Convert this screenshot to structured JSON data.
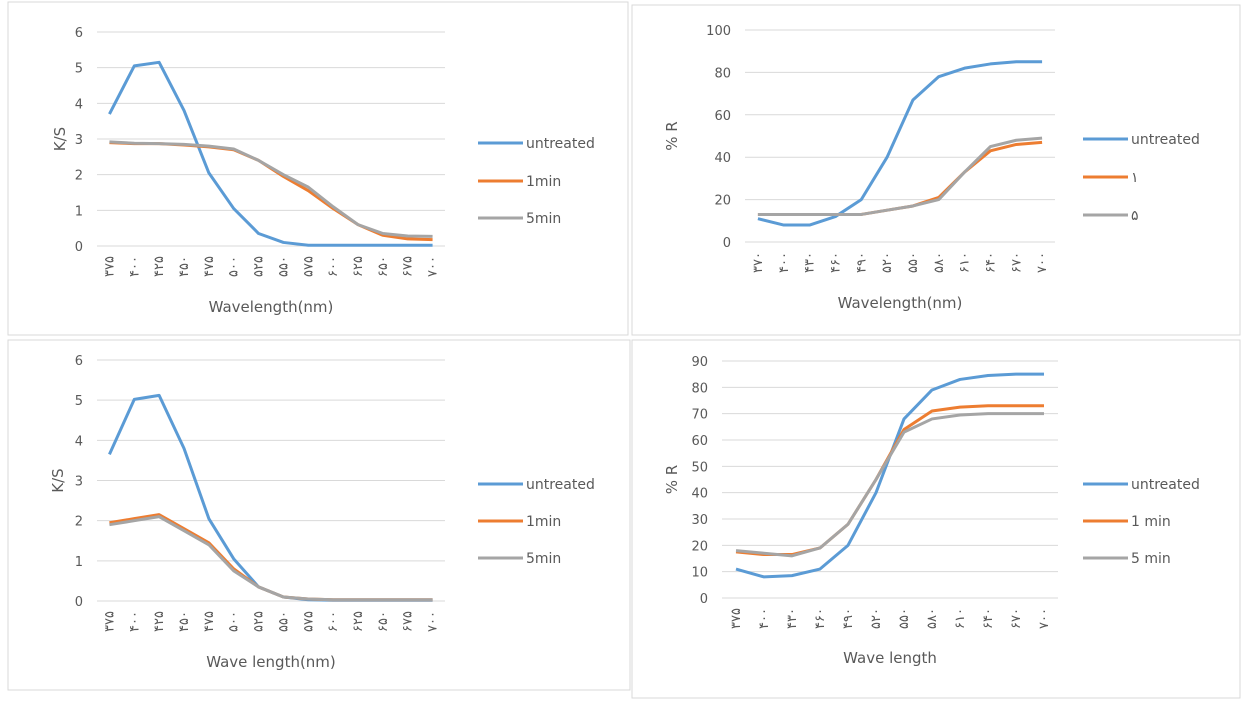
{
  "chart_data": [
    {
      "type": "line",
      "y_label": "K/S",
      "x_label": "Wavelength(nm)",
      "categories": [
        "۳۷۵",
        "۴۰۰",
        "۴۲۵",
        "۴۵۰",
        "۴۷۵",
        "۵۰۰",
        "۵۲۵",
        "۵۵۰",
        "۵۷۵",
        "۶۰۰",
        "۶۲۵",
        "۶۵۰",
        "۶۷۵",
        "۷۰۰"
      ],
      "ylim": [
        0,
        6
      ],
      "yticks": [
        0,
        1,
        2,
        3,
        4,
        5,
        6
      ],
      "grid": true,
      "series": [
        {
          "name": "untreated",
          "color": "#5b9bd5",
          "values": [
            3.7,
            5.05,
            5.15,
            3.8,
            2.05,
            1.05,
            0.35,
            0.1,
            0.02,
            0.02,
            0.02,
            0.02,
            0.02,
            0.02
          ]
        },
        {
          "name": "1min",
          "color": "#ed7d31",
          "values": [
            2.9,
            2.87,
            2.87,
            2.83,
            2.78,
            2.7,
            2.4,
            1.95,
            1.55,
            1.05,
            0.6,
            0.3,
            0.2,
            0.18
          ]
        },
        {
          "name": "5min",
          "color": "#a5a5a5",
          "values": [
            2.92,
            2.88,
            2.87,
            2.85,
            2.8,
            2.72,
            2.4,
            2.0,
            1.65,
            1.1,
            0.6,
            0.35,
            0.28,
            0.27
          ]
        }
      ]
    },
    {
      "type": "line",
      "y_label": "% R",
      "x_label": "Wavelength(nm)",
      "categories": [
        "۳۷۰",
        "۴۰۰",
        "۴۳۰",
        "۴۶۰",
        "۴۹۰",
        "۵۲۰",
        "۵۵۰",
        "۵۸۰",
        "۶۱۰",
        "۶۴۰",
        "۶۷۰",
        "۷۰۰"
      ],
      "ylim": [
        0,
        100
      ],
      "yticks": [
        0,
        20,
        40,
        60,
        80,
        100
      ],
      "grid": true,
      "series": [
        {
          "name": "untreated",
          "color": "#5b9bd5",
          "values": [
            11,
            8,
            8,
            12,
            20,
            40,
            67,
            78,
            82,
            84,
            85,
            85
          ]
        },
        {
          "name": "۱",
          "color": "#ed7d31",
          "values": [
            13,
            13,
            13,
            13,
            13,
            15,
            17,
            21,
            33,
            43,
            46,
            47
          ]
        },
        {
          "name": "۵",
          "color": "#a5a5a5",
          "values": [
            13,
            13,
            13,
            13,
            13,
            15,
            17,
            20,
            33,
            45,
            48,
            49
          ]
        }
      ]
    },
    {
      "type": "line",
      "y_label": "K/S",
      "x_label": "Wave length(nm)",
      "categories": [
        "۳۷۵",
        "۴۰۰",
        "۴۲۵",
        "۴۵۰",
        "۴۷۵",
        "۵۰۰",
        "۵۲۵",
        "۵۵۰",
        "۵۷۵",
        "۶۰۰",
        "۶۲۵",
        "۶۵۰",
        "۶۷۵",
        "۷۰۰"
      ],
      "ylim": [
        0,
        6
      ],
      "yticks": [
        0,
        1,
        2,
        3,
        4,
        5,
        6
      ],
      "grid": true,
      "series": [
        {
          "name": "untreated",
          "color": "#5b9bd5",
          "values": [
            3.65,
            5.02,
            5.12,
            3.8,
            2.05,
            1.05,
            0.35,
            0.1,
            0.03,
            0.02,
            0.02,
            0.02,
            0.02,
            0.02
          ]
        },
        {
          "name": "1min",
          "color": "#ed7d31",
          "values": [
            1.95,
            2.05,
            2.15,
            1.8,
            1.45,
            0.8,
            0.35,
            0.1,
            0.05,
            0.03,
            0.03,
            0.03,
            0.03,
            0.03
          ]
        },
        {
          "name": "5min",
          "color": "#a5a5a5",
          "values": [
            1.9,
            2.0,
            2.1,
            1.75,
            1.4,
            0.75,
            0.35,
            0.1,
            0.05,
            0.03,
            0.03,
            0.03,
            0.03,
            0.03
          ]
        }
      ]
    },
    {
      "type": "line",
      "y_label": "% R",
      "x_label": "Wave length",
      "categories": [
        "۳۷۵",
        "۴۰۰",
        "۴۳۰",
        "۴۶۰",
        "۴۹۰",
        "۵۲۰",
        "۵۵۰",
        "۵۸۰",
        "۶۱۰",
        "۶۴۰",
        "۶۷۰",
        "۷۰۰"
      ],
      "ylim": [
        0,
        90
      ],
      "yticks": [
        0,
        10,
        20,
        30,
        40,
        50,
        60,
        70,
        80,
        90
      ],
      "grid": true,
      "series": [
        {
          "name": "untreated",
          "color": "#5b9bd5",
          "values": [
            11,
            8,
            8.5,
            11,
            20,
            40,
            68,
            79,
            83,
            84.5,
            85,
            85
          ]
        },
        {
          "name": "1 min",
          "color": "#ed7d31",
          "values": [
            17.5,
            16.5,
            16.5,
            19,
            28,
            45,
            64,
            71,
            72.5,
            73,
            73,
            73
          ]
        },
        {
          "name": "5 min",
          "color": "#a5a5a5",
          "values": [
            18,
            17,
            16,
            19,
            28,
            45,
            63,
            68,
            69.5,
            70,
            70,
            70
          ]
        }
      ]
    }
  ]
}
